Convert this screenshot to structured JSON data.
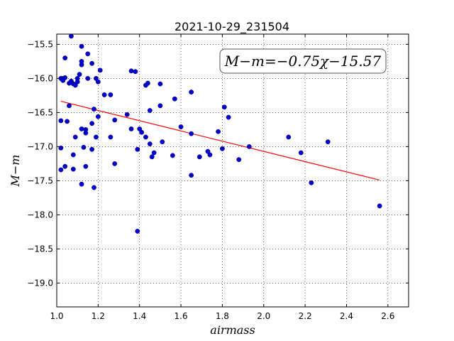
{
  "chart_data": {
    "type": "scatter",
    "title": "2021-10-29_231504",
    "xlabel": "airmass",
    "ylabel": "M−m",
    "xlim": [
      1.0,
      2.7
    ],
    "ylim": [
      -19.35,
      -15.35
    ],
    "y_inverted": true,
    "grid": true,
    "xticks": [
      "1.0",
      "1.2",
      "1.4",
      "1.6",
      "1.8",
      "2.0",
      "2.2",
      "2.4",
      "2.6"
    ],
    "yticks": [
      "−15.5",
      "−16.0",
      "−16.5",
      "−17.0",
      "−17.5",
      "−18.0",
      "−18.5",
      "−19.0"
    ],
    "annotation": "M−m=−0.75χ−15.57",
    "fit": {
      "slope": -0.75,
      "intercept": -15.57,
      "x_range": [
        1.02,
        2.56
      ],
      "color": "#ff0000"
    },
    "marker_color": "#0000cc",
    "points": [
      [
        1.02,
        -16.62
      ],
      [
        1.02,
        -16.0
      ],
      [
        1.03,
        -16.0
      ],
      [
        1.03,
        -16.03
      ],
      [
        1.04,
        -15.99
      ],
      [
        1.04,
        -15.7
      ],
      [
        1.02,
        -17.02
      ],
      [
        1.02,
        -17.34
      ],
      [
        1.04,
        -17.29
      ],
      [
        1.05,
        -16.63
      ],
      [
        1.06,
        -16.4
      ],
      [
        1.06,
        -16.07
      ],
      [
        1.07,
        -15.38
      ],
      [
        1.07,
        -16.04
      ],
      [
        1.08,
        -16.08
      ],
      [
        1.09,
        -16.1
      ],
      [
        1.1,
        -16.05
      ],
      [
        1.1,
        -16.0
      ],
      [
        1.11,
        -15.94
      ],
      [
        1.12,
        -15.8
      ],
      [
        1.12,
        -15.53
      ],
      [
        1.12,
        -15.75
      ],
      [
        1.15,
        -15.64
      ],
      [
        1.17,
        -15.78
      ],
      [
        1.15,
        -16.0
      ],
      [
        1.19,
        -16.0
      ],
      [
        1.2,
        -16.05
      ],
      [
        1.21,
        -15.88
      ],
      [
        1.23,
        -16.24
      ],
      [
        1.26,
        -16.24
      ],
      [
        1.18,
        -16.45
      ],
      [
        1.2,
        -16.56
      ],
      [
        1.17,
        -16.66
      ],
      [
        1.12,
        -16.74
      ],
      [
        1.14,
        -16.8
      ],
      [
        1.14,
        -16.75
      ],
      [
        1.09,
        -16.86
      ],
      [
        1.19,
        -16.86
      ],
      [
        1.08,
        -17.12
      ],
      [
        1.13,
        -17.01
      ],
      [
        1.17,
        -17.04
      ],
      [
        1.14,
        -17.29
      ],
      [
        1.08,
        -17.33
      ],
      [
        1.12,
        -17.55
      ],
      [
        1.18,
        -17.6
      ],
      [
        1.26,
        -16.86
      ],
      [
        1.28,
        -16.61
      ],
      [
        1.28,
        -17.25
      ],
      [
        1.34,
        -16.53
      ],
      [
        1.36,
        -15.89
      ],
      [
        1.38,
        -15.9
      ],
      [
        1.36,
        -16.74
      ],
      [
        1.39,
        -17.04
      ],
      [
        1.39,
        -18.24
      ],
      [
        1.4,
        -16.74
      ],
      [
        1.41,
        -16.79
      ],
      [
        1.43,
        -16.1
      ],
      [
        1.44,
        -16.07
      ],
      [
        1.45,
        -16.47
      ],
      [
        1.43,
        -16.86
      ],
      [
        1.45,
        -16.96
      ],
      [
        1.47,
        -17.09
      ],
      [
        1.46,
        -17.15
      ],
      [
        1.5,
        -16.08
      ],
      [
        1.5,
        -16.4
      ],
      [
        1.51,
        -16.93
      ],
      [
        1.56,
        -17.13
      ],
      [
        1.57,
        -16.3
      ],
      [
        1.6,
        -16.71
      ],
      [
        1.65,
        -16.2
      ],
      [
        1.65,
        -16.81
      ],
      [
        1.65,
        -17.42
      ],
      [
        1.69,
        -17.15
      ],
      [
        1.73,
        -17.07
      ],
      [
        1.74,
        -17.12
      ],
      [
        1.78,
        -16.78
      ],
      [
        1.8,
        -17.03
      ],
      [
        1.81,
        -16.42
      ],
      [
        1.83,
        -16.57
      ],
      [
        1.88,
        -17.19
      ],
      [
        1.93,
        -17.0
      ],
      [
        2.12,
        -16.86
      ],
      [
        2.18,
        -17.09
      ],
      [
        2.23,
        -17.53
      ],
      [
        2.31,
        -16.93
      ],
      [
        2.56,
        -17.87
      ]
    ]
  }
}
